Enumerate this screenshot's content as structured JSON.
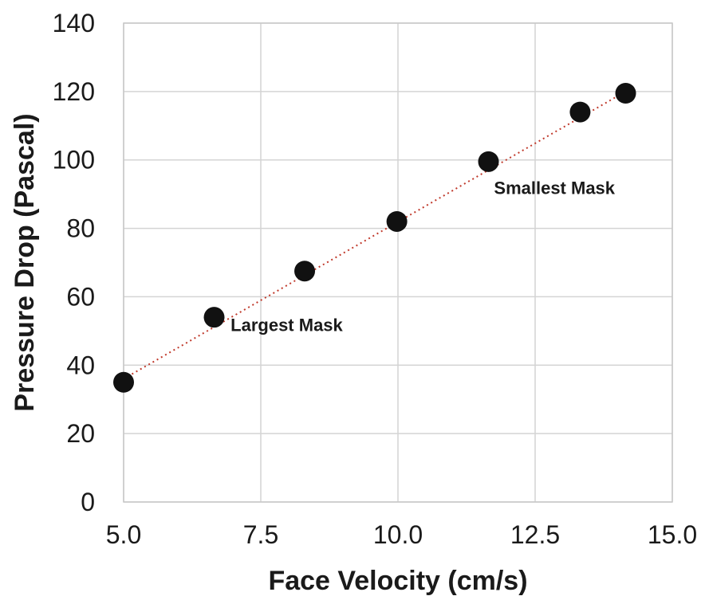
{
  "chart_data": {
    "type": "scatter",
    "title": "",
    "xlabel": "Face Velocity (cm/s)",
    "ylabel": "Pressure Drop (Pascal)",
    "xlim": [
      5.0,
      15.0
    ],
    "ylim": [
      0,
      140
    ],
    "xticks": [
      "5.0",
      "7.5",
      "10.0",
      "12.5",
      "15.0"
    ],
    "yticks": [
      "0",
      "20",
      "40",
      "60",
      "80",
      "100",
      "120",
      "140"
    ],
    "grid": true,
    "series": [
      {
        "points": [
          {
            "x": 5.0,
            "y": 35
          },
          {
            "x": 6.65,
            "y": 54
          },
          {
            "x": 8.3,
            "y": 67.5
          },
          {
            "x": 9.98,
            "y": 82
          },
          {
            "x": 11.65,
            "y": 99.5
          },
          {
            "x": 13.32,
            "y": 114
          },
          {
            "x": 14.15,
            "y": 119.5
          }
        ],
        "color": "#111111"
      }
    ],
    "trendline": {
      "type": "linear",
      "style": "dotted",
      "color": "#c0392b",
      "from": {
        "x": 5.0,
        "y": 36
      },
      "to": {
        "x": 14.15,
        "y": 120
      }
    },
    "annotations": [
      {
        "text": "Largest Mask",
        "x": 6.95,
        "y": 50
      },
      {
        "text": "Smallest Mask",
        "x": 11.75,
        "y": 90
      }
    ]
  }
}
